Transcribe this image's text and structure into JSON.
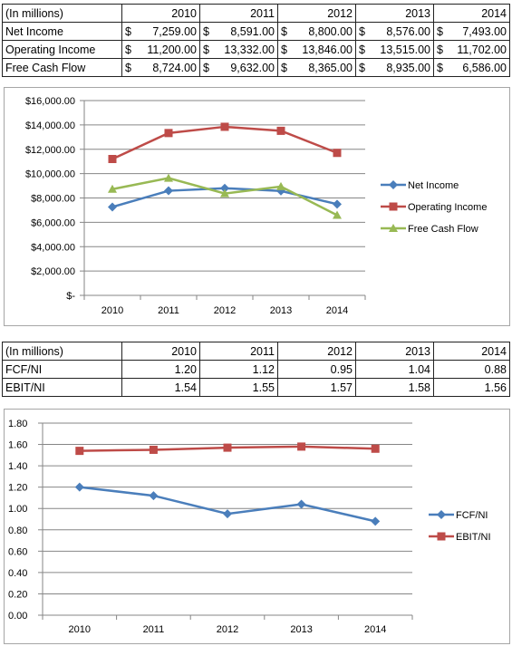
{
  "table1": {
    "header": [
      "(In millions)",
      "2010",
      "2011",
      "2012",
      "2013",
      "2014"
    ],
    "rows": [
      {
        "label": "Net Income",
        "cells": [
          [
            "$",
            "7,259.00"
          ],
          [
            "$",
            "8,591.00"
          ],
          [
            "$",
            "8,800.00"
          ],
          [
            "$",
            "8,576.00"
          ],
          [
            "$",
            "7,493.00"
          ]
        ]
      },
      {
        "label": "Operating Income",
        "cells": [
          [
            "$",
            "11,200.00"
          ],
          [
            "$",
            "13,332.00"
          ],
          [
            "$",
            "13,846.00"
          ],
          [
            "$",
            "13,515.00"
          ],
          [
            "$",
            "11,702.00"
          ]
        ]
      },
      {
        "label": "Free Cash Flow",
        "cells": [
          [
            "$",
            "8,724.00"
          ],
          [
            "$",
            "9,632.00"
          ],
          [
            "$",
            "8,365.00"
          ],
          [
            "$",
            "8,935.00"
          ],
          [
            "$",
            "6,586.00"
          ]
        ]
      }
    ]
  },
  "table2": {
    "header": [
      "(In millions)",
      "2010",
      "2011",
      "2012",
      "2013",
      "2014"
    ],
    "rows": [
      {
        "label": "FCF/NI",
        "cells": [
          "1.20",
          "1.12",
          "0.95",
          "1.04",
          "0.88"
        ]
      },
      {
        "label": "EBIT/NI",
        "cells": [
          "1.54",
          "1.55",
          "1.57",
          "1.58",
          "1.56"
        ]
      }
    ]
  },
  "chart_data": [
    {
      "type": "line",
      "categories": [
        "2010",
        "2011",
        "2012",
        "2013",
        "2014"
      ],
      "series": [
        {
          "name": "Net Income",
          "values": [
            7259,
            8591,
            8800,
            8576,
            7493
          ],
          "color": "#4a7ebb",
          "marker": "diamond"
        },
        {
          "name": "Operating Income",
          "values": [
            11200,
            13332,
            13846,
            13515,
            11702
          ],
          "color": "#be4b48",
          "marker": "square"
        },
        {
          "name": "Free Cash Flow",
          "values": [
            8724,
            9632,
            8365,
            8935,
            6586
          ],
          "color": "#98b954",
          "marker": "triangle"
        }
      ],
      "ylim": [
        0,
        16000
      ],
      "yticks": [
        0,
        2000,
        4000,
        6000,
        8000,
        10000,
        12000,
        14000,
        16000
      ],
      "yticklabels": [
        "$-",
        "$2,000.00",
        "$4,000.00",
        "$6,000.00",
        "$8,000.00",
        "$10,000.00",
        "$12,000.00",
        "$14,000.00",
        "$16,000.00"
      ],
      "grid": true,
      "legend": "right"
    },
    {
      "type": "line",
      "categories": [
        "2010",
        "2011",
        "2012",
        "2013",
        "2014"
      ],
      "series": [
        {
          "name": "FCF/NI",
          "values": [
            1.2,
            1.12,
            0.95,
            1.04,
            0.88
          ],
          "color": "#4a7ebb",
          "marker": "diamond"
        },
        {
          "name": "EBIT/NI",
          "values": [
            1.54,
            1.55,
            1.57,
            1.58,
            1.56
          ],
          "color": "#be4b48",
          "marker": "square"
        }
      ],
      "ylim": [
        0,
        1.8
      ],
      "yticks": [
        0,
        0.2,
        0.4,
        0.6,
        0.8,
        1.0,
        1.2,
        1.4,
        1.6,
        1.8
      ],
      "yticklabels": [
        "0.00",
        "0.20",
        "0.40",
        "0.60",
        "0.80",
        "1.00",
        "1.20",
        "1.40",
        "1.60",
        "1.80"
      ],
      "grid": true,
      "legend": "right"
    }
  ]
}
